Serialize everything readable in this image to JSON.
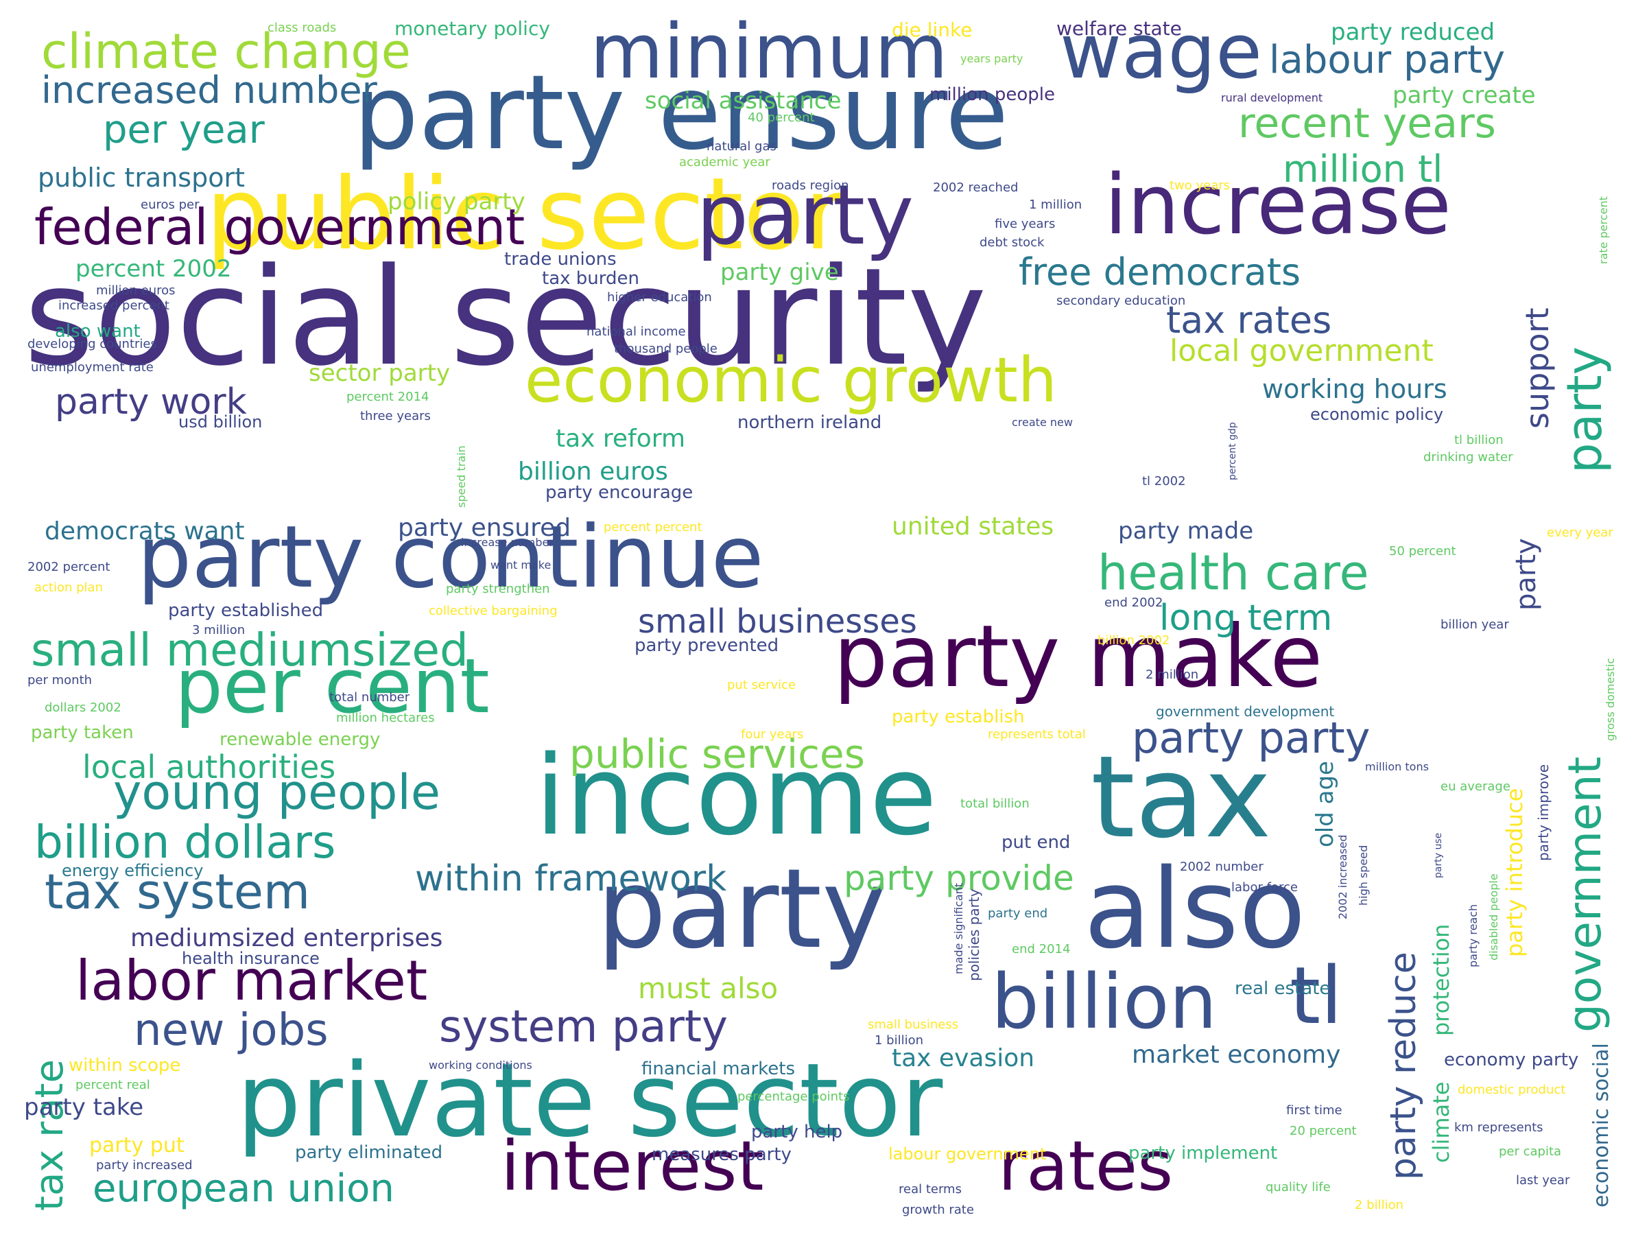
{
  "words": [
    {
      "text": "social security",
      "color": "#46327e"
    },
    {
      "text": "public sector",
      "color": "#fde725"
    },
    {
      "text": "party ensure",
      "color": "#365c8d"
    },
    {
      "text": "private sector",
      "color": "#21918c"
    },
    {
      "text": "income",
      "color": "#21918c"
    },
    {
      "text": "tax",
      "color": "#277f8e"
    },
    {
      "text": "party",
      "color": "#3b528b"
    },
    {
      "text": "also",
      "color": "#3b528b"
    },
    {
      "text": "party continue",
      "color": "#3b528b"
    },
    {
      "text": "party make",
      "color": "#440154"
    },
    {
      "text": "party",
      "color": "#46327e"
    },
    {
      "text": "increase",
      "color": "#482878"
    },
    {
      "text": "minimum",
      "color": "#3b528b"
    },
    {
      "text": "wage",
      "color": "#3b528b"
    },
    {
      "text": "economic growth",
      "color": "#c8e020"
    },
    {
      "text": "per cent",
      "color": "#29af7f"
    },
    {
      "text": "interest",
      "color": "#440154"
    },
    {
      "text": "rates",
      "color": "#440154"
    },
    {
      "text": "billion",
      "color": "#3b528b"
    },
    {
      "text": "tl",
      "color": "#3b528b"
    },
    {
      "text": "climate change",
      "color": "#a0da39"
    },
    {
      "text": "labor market",
      "color": "#440154"
    },
    {
      "text": "federal government",
      "color": "#440154"
    },
    {
      "text": "health care",
      "color": "#35b779"
    },
    {
      "text": "young people",
      "color": "#21918c"
    },
    {
      "text": "small mediumsized",
      "color": "#29af7f"
    },
    {
      "text": "billion dollars",
      "color": "#1f9e89"
    },
    {
      "text": "tax system",
      "color": "#31688e"
    },
    {
      "text": "european union",
      "color": "#1f9e89"
    },
    {
      "text": "system party",
      "color": "#433e85"
    },
    {
      "text": "new jobs",
      "color": "#3b528b"
    },
    {
      "text": "labour party",
      "color": "#31688e"
    },
    {
      "text": "recent years",
      "color": "#5ec962"
    },
    {
      "text": "public services",
      "color": "#7ad151"
    },
    {
      "text": "party party",
      "color": "#3b528b"
    },
    {
      "text": "increased number",
      "color": "#31688e"
    },
    {
      "text": "per year",
      "color": "#1f9e89"
    },
    {
      "text": "million tl",
      "color": "#35b779"
    },
    {
      "text": "free democrats",
      "color": "#2a788e"
    },
    {
      "text": "tax rates",
      "color": "#3b528b"
    },
    {
      "text": "small businesses",
      "color": "#3e4989"
    },
    {
      "text": "long term",
      "color": "#1f9e89"
    },
    {
      "text": "within framework",
      "color": "#2c728e"
    },
    {
      "text": "local authorities",
      "color": "#29af7f"
    },
    {
      "text": "party work",
      "color": "#433e85"
    },
    {
      "text": "local government",
      "color": "#b5de2b"
    },
    {
      "text": "party provide",
      "color": "#5ec962"
    },
    {
      "text": "government",
      "color": "#22a884"
    },
    {
      "text": "party",
      "color": "#22a884"
    },
    {
      "text": "support",
      "color": "#3e4989"
    },
    {
      "text": "party",
      "color": "#3e4989"
    },
    {
      "text": "party reduce",
      "color": "#3b528b"
    },
    {
      "text": "tax rate",
      "color": "#22a884"
    },
    {
      "text": "must also",
      "color": "#a0da39"
    },
    {
      "text": "public transport",
      "color": "#2c728e"
    },
    {
      "text": "working hours",
      "color": "#2c728e"
    },
    {
      "text": "mediumsized enterprises",
      "color": "#433e85"
    },
    {
      "text": "billion euros",
      "color": "#1f9e89"
    },
    {
      "text": "tax reform",
      "color": "#29af7f"
    },
    {
      "text": "party ensured",
      "color": "#3b528b"
    },
    {
      "text": "democrats want",
      "color": "#2c728e"
    },
    {
      "text": "united states",
      "color": "#a0da39"
    },
    {
      "text": "party made",
      "color": "#3b528b"
    },
    {
      "text": "tax evasion",
      "color": "#26828e"
    },
    {
      "text": "market economy",
      "color": "#31688e"
    },
    {
      "text": "percent 2002",
      "color": "#35b779"
    },
    {
      "text": "policy party",
      "color": "#a0da39"
    },
    {
      "text": "sector party",
      "color": "#a0da39"
    },
    {
      "text": "social assistance",
      "color": "#5ec962"
    },
    {
      "text": "party give",
      "color": "#5ec962"
    },
    {
      "text": "party create",
      "color": "#5ec962"
    },
    {
      "text": "party reduced",
      "color": "#29af7f"
    },
    {
      "text": "welfare state",
      "color": "#46327e"
    },
    {
      "text": "monetary policy",
      "color": "#35b779"
    },
    {
      "text": "die linke",
      "color": "#fde725"
    },
    {
      "text": "million people",
      "color": "#46327e"
    },
    {
      "text": "trade unions",
      "color": "#3e4989"
    },
    {
      "text": "tax burden",
      "color": "#3e4989"
    },
    {
      "text": "northern ireland",
      "color": "#3e4989"
    },
    {
      "text": "economic policy",
      "color": "#3e4989"
    },
    {
      "text": "party encourage",
      "color": "#3e4989"
    },
    {
      "text": "old age",
      "color": "#2a788e"
    },
    {
      "text": "party introduce",
      "color": "#fde725"
    },
    {
      "text": "protection",
      "color": "#35b779"
    },
    {
      "text": "climate",
      "color": "#35b779"
    },
    {
      "text": "economic social",
      "color": "#31688e"
    },
    {
      "text": "financial markets",
      "color": "#2c728e"
    },
    {
      "text": "party take",
      "color": "#3e4989"
    },
    {
      "text": "party put",
      "color": "#fde725"
    },
    {
      "text": "party help",
      "color": "#3e4989"
    },
    {
      "text": "party eliminated",
      "color": "#2c728e"
    },
    {
      "text": "measures party",
      "color": "#3e4989"
    },
    {
      "text": "labour government",
      "color": "#fde725"
    },
    {
      "text": "party implement",
      "color": "#35b779"
    },
    {
      "text": "energy efficiency",
      "color": "#2a788e"
    },
    {
      "text": "health insurance",
      "color": "#3e4989"
    },
    {
      "text": "renewable energy",
      "color": "#7ad151"
    },
    {
      "text": "party taken",
      "color": "#7ad151"
    },
    {
      "text": "party established",
      "color": "#3e4989"
    },
    {
      "text": "party prevented",
      "color": "#3e4989"
    },
    {
      "text": "economy party",
      "color": "#3e4989"
    },
    {
      "text": "real estate",
      "color": "#2a788e"
    },
    {
      "text": "within scope",
      "color": "#fde725"
    },
    {
      "text": "party establish",
      "color": "#fde725"
    },
    {
      "text": "put end",
      "color": "#3e4989"
    },
    {
      "text": "also want",
      "color": "#22a884"
    },
    {
      "text": "usd billion",
      "color": "#3e4989"
    },
    {
      "text": "government development",
      "color": "#2c728e"
    },
    {
      "text": "party improve",
      "color": "#3e4989"
    },
    {
      "text": "party end",
      "color": "#2c728e"
    },
    {
      "text": "class roads",
      "color": "#7ad151"
    },
    {
      "text": "years party",
      "color": "#7ad151"
    },
    {
      "text": "rural development",
      "color": "#46327e"
    },
    {
      "text": "40 percent",
      "color": "#5ec962"
    },
    {
      "text": "natural gas",
      "color": "#3e4989"
    },
    {
      "text": "academic year",
      "color": "#7ad151"
    },
    {
      "text": "roads region",
      "color": "#3e4989"
    },
    {
      "text": "2002 reached",
      "color": "#3e4989"
    },
    {
      "text": "two years",
      "color": "#fde725"
    },
    {
      "text": "1 million",
      "color": "#3e4989"
    },
    {
      "text": "five years",
      "color": "#3e4989"
    },
    {
      "text": "debt stock",
      "color": "#3e4989"
    },
    {
      "text": "euros per",
      "color": "#3e4989"
    },
    {
      "text": "million euros",
      "color": "#3e4989"
    },
    {
      "text": "increased percent",
      "color": "#3e4989"
    },
    {
      "text": "higher education",
      "color": "#3e4989"
    },
    {
      "text": "secondary education",
      "color": "#3e4989"
    },
    {
      "text": "national income",
      "color": "#3e4989"
    },
    {
      "text": "thousand people",
      "color": "#3e4989"
    },
    {
      "text": "developing countries",
      "color": "#3e4989"
    },
    {
      "text": "unemployment rate",
      "color": "#3e4989"
    },
    {
      "text": "percent 2014",
      "color": "#5ec962"
    },
    {
      "text": "three years",
      "color": "#3e4989"
    },
    {
      "text": "create new",
      "color": "#3e4989"
    },
    {
      "text": "tl billion",
      "color": "#5ec962"
    },
    {
      "text": "drinking water",
      "color": "#5ec962"
    },
    {
      "text": "tl 2002",
      "color": "#3e4989"
    },
    {
      "text": "percent percent",
      "color": "#fde725"
    },
    {
      "text": "increase number",
      "color": "#3e4989"
    },
    {
      "text": "every year",
      "color": "#fde725"
    },
    {
      "text": "50 percent",
      "color": "#5ec962"
    },
    {
      "text": "2002 percent",
      "color": "#3e4989"
    },
    {
      "text": "want make",
      "color": "#3e4989"
    },
    {
      "text": "action plan",
      "color": "#fde725"
    },
    {
      "text": "party strengthen",
      "color": "#5ec962"
    },
    {
      "text": "collective bargaining",
      "color": "#fde725"
    },
    {
      "text": "end 2002",
      "color": "#3e4989"
    },
    {
      "text": "3 million",
      "color": "#3e4989"
    },
    {
      "text": "billion 2002",
      "color": "#fde725"
    },
    {
      "text": "billion year",
      "color": "#3e4989"
    },
    {
      "text": "per month",
      "color": "#3e4989"
    },
    {
      "text": "2 million",
      "color": "#3e4989"
    },
    {
      "text": "total number",
      "color": "#3e4989"
    },
    {
      "text": "put service",
      "color": "#fde725"
    },
    {
      "text": "dollars 2002",
      "color": "#5ec962"
    },
    {
      "text": "million hectares",
      "color": "#5ec962"
    },
    {
      "text": "four years",
      "color": "#fde725"
    },
    {
      "text": "represents total",
      "color": "#fde725"
    },
    {
      "text": "million tons",
      "color": "#3e4989"
    },
    {
      "text": "eu average",
      "color": "#5ec962"
    },
    {
      "text": "total billion",
      "color": "#5ec962"
    },
    {
      "text": "2002 number",
      "color": "#3e4989"
    },
    {
      "text": "labor force",
      "color": "#3e4989"
    },
    {
      "text": "end 2014",
      "color": "#5ec962"
    },
    {
      "text": "small business",
      "color": "#fde725"
    },
    {
      "text": "1 billion",
      "color": "#3e4989"
    },
    {
      "text": "working conditions",
      "color": "#3e4989"
    },
    {
      "text": "percent real",
      "color": "#5ec962"
    },
    {
      "text": "percentage points",
      "color": "#5ec962"
    },
    {
      "text": "domestic product",
      "color": "#fde725"
    },
    {
      "text": "first time",
      "color": "#3e4989"
    },
    {
      "text": "20 percent",
      "color": "#5ec962"
    },
    {
      "text": "km represents",
      "color": "#3e4989"
    },
    {
      "text": "per capita",
      "color": "#5ec962"
    },
    {
      "text": "party increased",
      "color": "#3e4989"
    },
    {
      "text": "real terms",
      "color": "#3e4989"
    },
    {
      "text": "growth rate",
      "color": "#3e4989"
    },
    {
      "text": "quality life",
      "color": "#5ec962"
    },
    {
      "text": "last year",
      "color": "#3e4989"
    },
    {
      "text": "2 billion",
      "color": "#fde725"
    },
    {
      "text": "rate percent",
      "color": "#5ec962"
    },
    {
      "text": "gross domestic",
      "color": "#5ec962"
    },
    {
      "text": "percent gdp",
      "color": "#3e4989"
    },
    {
      "text": "speed train",
      "color": "#5ec962"
    },
    {
      "text": "made significant",
      "color": "#3e4989"
    },
    {
      "text": "policies party",
      "color": "#3e4989"
    },
    {
      "text": "2002 increased",
      "color": "#3e4989"
    },
    {
      "text": "high speed",
      "color": "#3e4989"
    },
    {
      "text": "party use",
      "color": "#3e4989"
    },
    {
      "text": "party reach",
      "color": "#3e4989"
    },
    {
      "text": "disabled people",
      "color": "#5ec962"
    }
  ]
}
